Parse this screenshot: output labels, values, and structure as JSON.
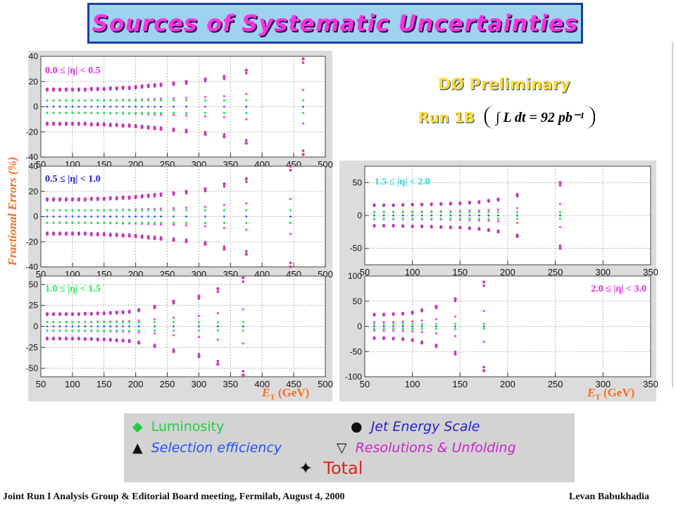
{
  "title": "Sources of Systematic Uncertainties",
  "y_axis_label": "Fractional Errors (%)",
  "x_axis_label": "E",
  "x_axis_sub": "T",
  "x_axis_unit": "(GeV)",
  "preliminary": "DØ Preliminary",
  "run_label": "Run 1B",
  "luminosity_text": "∫ L dt = 92 pb⁻¹",
  "legend": {
    "luminosity": {
      "marker": "◆",
      "label": "Luminosity",
      "color": "#22ee55"
    },
    "jes": {
      "marker": "●",
      "label": "Jet Energy Scale",
      "color": "#2020cc"
    },
    "selection": {
      "marker": "▲",
      "label": "Selection efficiency",
      "color": "#2050ff"
    },
    "resolution": {
      "marker": "▽",
      "label": "Resolutions & Unfolding",
      "color": "#cc22cc"
    },
    "total": {
      "marker": "✦",
      "label": "Total",
      "color": "#dd2222"
    }
  },
  "footer": {
    "left": "Joint Run I Analysis Group & Editorial Board meeting, Fermilab, August 4, 2000",
    "right": "Levan Babukhadia"
  },
  "chart_data": [
    {
      "type": "scatter",
      "label": "0.0 ≤ |η| < 0.5",
      "label_color": "#ee22ee",
      "xlim": [
        50,
        500
      ],
      "ylim": [
        -40,
        40
      ],
      "xticks": [
        50,
        100,
        150,
        200,
        250,
        300,
        350,
        400,
        450,
        500
      ],
      "yticks": [
        -40,
        -20,
        0,
        20,
        40
      ],
      "x": [
        60,
        70,
        80,
        90,
        100,
        110,
        120,
        130,
        140,
        150,
        160,
        170,
        180,
        190,
        200,
        210,
        220,
        230,
        240,
        260,
        280,
        310,
        340,
        375,
        465
      ],
      "total": [
        14,
        14,
        14,
        14,
        14,
        14,
        14,
        14.5,
        14.5,
        14.5,
        15,
        15,
        15.5,
        15.5,
        16,
        16.5,
        17,
        17.5,
        18,
        19,
        20,
        22,
        24,
        29,
        38
      ],
      "lum": [
        5,
        5,
        5,
        5,
        5,
        5,
        5,
        5,
        5,
        5,
        5,
        5,
        5,
        5,
        5,
        5,
        5,
        5,
        5,
        5,
        5,
        5,
        5,
        5,
        5
      ]
    },
    {
      "type": "scatter",
      "label": "0.5 ≤ |η| < 1.0",
      "label_color": "#2020cc",
      "xlim": [
        50,
        500
      ],
      "ylim": [
        -40,
        40
      ],
      "xticks": [
        50,
        100,
        150,
        200,
        250,
        300,
        350,
        400,
        450,
        500
      ],
      "yticks": [
        -40,
        -20,
        0,
        20,
        40
      ],
      "x": [
        60,
        70,
        80,
        90,
        100,
        110,
        120,
        130,
        140,
        150,
        160,
        170,
        180,
        190,
        200,
        210,
        220,
        230,
        240,
        260,
        280,
        310,
        340,
        375,
        445
      ],
      "total": [
        14,
        14,
        14,
        14,
        14,
        14,
        14,
        14.5,
        14.5,
        14.5,
        15,
        15,
        15.5,
        15.5,
        16,
        16.5,
        17,
        17.5,
        18,
        19,
        20,
        22,
        26,
        30,
        40
      ],
      "lum": [
        5,
        5,
        5,
        5,
        5,
        5,
        5,
        5,
        5,
        5,
        5,
        5,
        5,
        5,
        5,
        5,
        5,
        5,
        5,
        5,
        5,
        5,
        5,
        5,
        5
      ]
    },
    {
      "type": "scatter",
      "label": "1.0 ≤ |η| < 1.5",
      "label_color": "#22ee55",
      "xlim": [
        50,
        500
      ],
      "ylim": [
        -60,
        60
      ],
      "xticks": [
        50,
        100,
        150,
        200,
        250,
        300,
        350,
        400,
        450,
        500
      ],
      "yticks": [
        -50,
        -25,
        0,
        25,
        50
      ],
      "x": [
        60,
        70,
        80,
        90,
        100,
        110,
        120,
        130,
        140,
        150,
        160,
        170,
        180,
        190,
        205,
        230,
        260,
        300,
        330,
        370
      ],
      "total": [
        15,
        15,
        15,
        15,
        15,
        15,
        15.5,
        15.5,
        16,
        16,
        16.5,
        17,
        17.5,
        18,
        20,
        24,
        30,
        36,
        45,
        58
      ],
      "lum": [
        5,
        5,
        5,
        5,
        5,
        5,
        5,
        5,
        5,
        5,
        5,
        5,
        5,
        5,
        5,
        5,
        5,
        5,
        5,
        5
      ]
    },
    {
      "type": "scatter",
      "label": "1.5 ≤ |η| < 2.0",
      "label_color": "#22dddd",
      "xlim": [
        50,
        350
      ],
      "ylim": [
        -75,
        75
      ],
      "xticks": [
        50,
        100,
        150,
        200,
        250,
        300,
        350
      ],
      "yticks": [
        -50,
        0,
        50
      ],
      "x": [
        60,
        70,
        80,
        90,
        100,
        110,
        120,
        130,
        140,
        150,
        160,
        170,
        180,
        190,
        210,
        255
      ],
      "total": [
        16,
        16,
        16,
        16.5,
        17,
        17,
        17.5,
        18,
        18.5,
        19,
        20,
        21,
        23,
        25,
        32,
        50
      ],
      "lum": [
        5,
        5,
        5,
        5,
        5,
        5,
        5,
        5,
        5,
        5,
        5,
        5,
        5,
        5,
        5,
        5
      ]
    },
    {
      "type": "scatter",
      "label": "2.0 ≤ |η| < 3.0",
      "label_color": "#ee22ee",
      "xlim": [
        50,
        350
      ],
      "ylim": [
        -100,
        100
      ],
      "xticks": [
        50,
        100,
        150,
        200,
        250,
        300,
        350
      ],
      "yticks": [
        -100,
        -50,
        0,
        50,
        100
      ],
      "x": [
        60,
        70,
        80,
        90,
        100,
        110,
        125,
        145,
        175
      ],
      "total": [
        24,
        24,
        25,
        26,
        28,
        33,
        40,
        55,
        88
      ],
      "lum": [
        5,
        5,
        5,
        5,
        5,
        5,
        5,
        5,
        5
      ]
    }
  ]
}
